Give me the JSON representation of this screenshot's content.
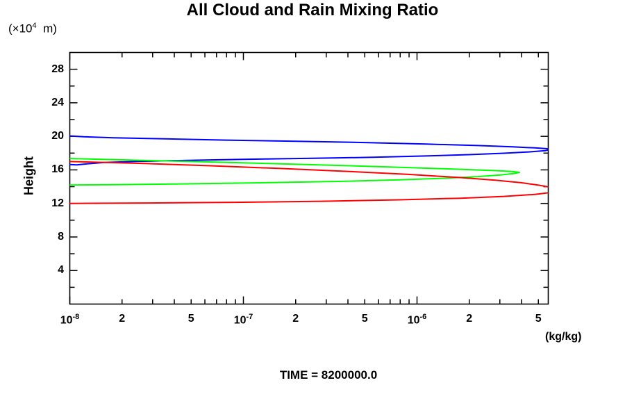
{
  "labels": {
    "y_units": {
      "prefix": "(×10",
      "sup": "4",
      "suffix": "  m)"
    }
  },
  "caption": {
    "time": "TIME = 8200000.0"
  },
  "colors": {
    "background": "#ffffff",
    "axis": "#000000",
    "series_blue": "#0000ff",
    "series_green": "#00ff00",
    "series_red": "#ff0000"
  },
  "chart_data": {
    "type": "line",
    "title": "All Cloud and Rain Mixing Ratio",
    "xlabel": "(kg/kg)",
    "ylabel": "Height",
    "y_units": "×10^4 m",
    "x_scale": "log10",
    "x_log_range": [
      -8,
      -5.244
    ],
    "y_range": [
      0,
      30
    ],
    "y_major_tick_step": 4,
    "y_minor_tick_step": 2,
    "x_decades_log10": [
      -8,
      -7,
      -6
    ],
    "x_minor_multipliers": [
      2,
      3,
      4,
      5,
      6,
      7,
      8,
      9
    ],
    "grid": false,
    "legend": "none",
    "x_tick_labels": [
      {
        "log10": -8.0,
        "base": "10",
        "sup": "-8"
      },
      {
        "log10": -7.69897,
        "base": "2"
      },
      {
        "log10": -7.30103,
        "base": "5"
      },
      {
        "log10": -7.0,
        "base": "10",
        "sup": "-7"
      },
      {
        "log10": -6.69897,
        "base": "2"
      },
      {
        "log10": -6.30103,
        "base": "5"
      },
      {
        "log10": -6.0,
        "base": "10",
        "sup": "-6"
      },
      {
        "log10": -5.69897,
        "base": "2"
      },
      {
        "log10": -5.30103,
        "base": "5"
      }
    ],
    "y_tick_labels": [
      "4",
      "8",
      "12",
      "16",
      "20",
      "24",
      "28"
    ],
    "series": [
      {
        "name": "blue-profile",
        "color": "#0000ff",
        "points_log10x_height": [
          [
            -8.0,
            20.05
          ],
          [
            -7.92,
            19.95
          ],
          [
            -7.75,
            19.83
          ],
          [
            -7.45,
            19.7
          ],
          [
            -7.1,
            19.55
          ],
          [
            -6.7,
            19.42
          ],
          [
            -6.3,
            19.26
          ],
          [
            -5.95,
            19.08
          ],
          [
            -5.65,
            18.9
          ],
          [
            -5.45,
            18.75
          ],
          [
            -5.32,
            18.62
          ],
          [
            -5.25,
            18.52
          ],
          [
            -5.235,
            18.42
          ],
          [
            -5.26,
            18.3
          ],
          [
            -5.35,
            18.15
          ],
          [
            -5.5,
            17.98
          ],
          [
            -5.7,
            17.82
          ],
          [
            -5.95,
            17.66
          ],
          [
            -6.25,
            17.5
          ],
          [
            -6.6,
            17.38
          ],
          [
            -7.0,
            17.26
          ],
          [
            -7.35,
            17.12
          ],
          [
            -7.6,
            17.02
          ],
          [
            -7.8,
            16.88
          ],
          [
            -7.9,
            16.72
          ],
          [
            -7.96,
            16.6
          ],
          [
            -8.0,
            16.63
          ]
        ]
      },
      {
        "name": "green-profile",
        "color": "#00ff00",
        "points_log10x_height": [
          [
            -8.0,
            17.35
          ],
          [
            -7.6,
            17.15
          ],
          [
            -7.2,
            16.95
          ],
          [
            -6.8,
            16.73
          ],
          [
            -6.4,
            16.5
          ],
          [
            -6.05,
            16.28
          ],
          [
            -5.75,
            16.07
          ],
          [
            -5.55,
            15.91
          ],
          [
            -5.45,
            15.8
          ],
          [
            -5.41,
            15.7
          ],
          [
            -5.44,
            15.57
          ],
          [
            -5.52,
            15.4
          ],
          [
            -5.65,
            15.2
          ],
          [
            -5.85,
            15.0
          ],
          [
            -6.1,
            14.82
          ],
          [
            -6.45,
            14.63
          ],
          [
            -6.9,
            14.46
          ],
          [
            -7.4,
            14.31
          ],
          [
            -7.75,
            14.24
          ],
          [
            -8.0,
            14.2
          ]
        ]
      },
      {
        "name": "red-profile",
        "color": "#ff0000",
        "points_log10x_height": [
          [
            -8.0,
            17.0
          ],
          [
            -7.6,
            16.78
          ],
          [
            -7.2,
            16.5
          ],
          [
            -6.8,
            16.18
          ],
          [
            -6.4,
            15.82
          ],
          [
            -6.05,
            15.46
          ],
          [
            -5.75,
            15.08
          ],
          [
            -5.55,
            14.77
          ],
          [
            -5.4,
            14.47
          ],
          [
            -5.3,
            14.18
          ],
          [
            -5.22,
            13.88
          ],
          [
            -5.17,
            13.58
          ],
          [
            -5.22,
            13.33
          ],
          [
            -5.32,
            13.08
          ],
          [
            -5.5,
            12.84
          ],
          [
            -5.75,
            12.62
          ],
          [
            -6.1,
            12.43
          ],
          [
            -6.55,
            12.26
          ],
          [
            -7.05,
            12.13
          ],
          [
            -7.55,
            12.05
          ],
          [
            -8.0,
            12.0
          ]
        ]
      }
    ]
  }
}
